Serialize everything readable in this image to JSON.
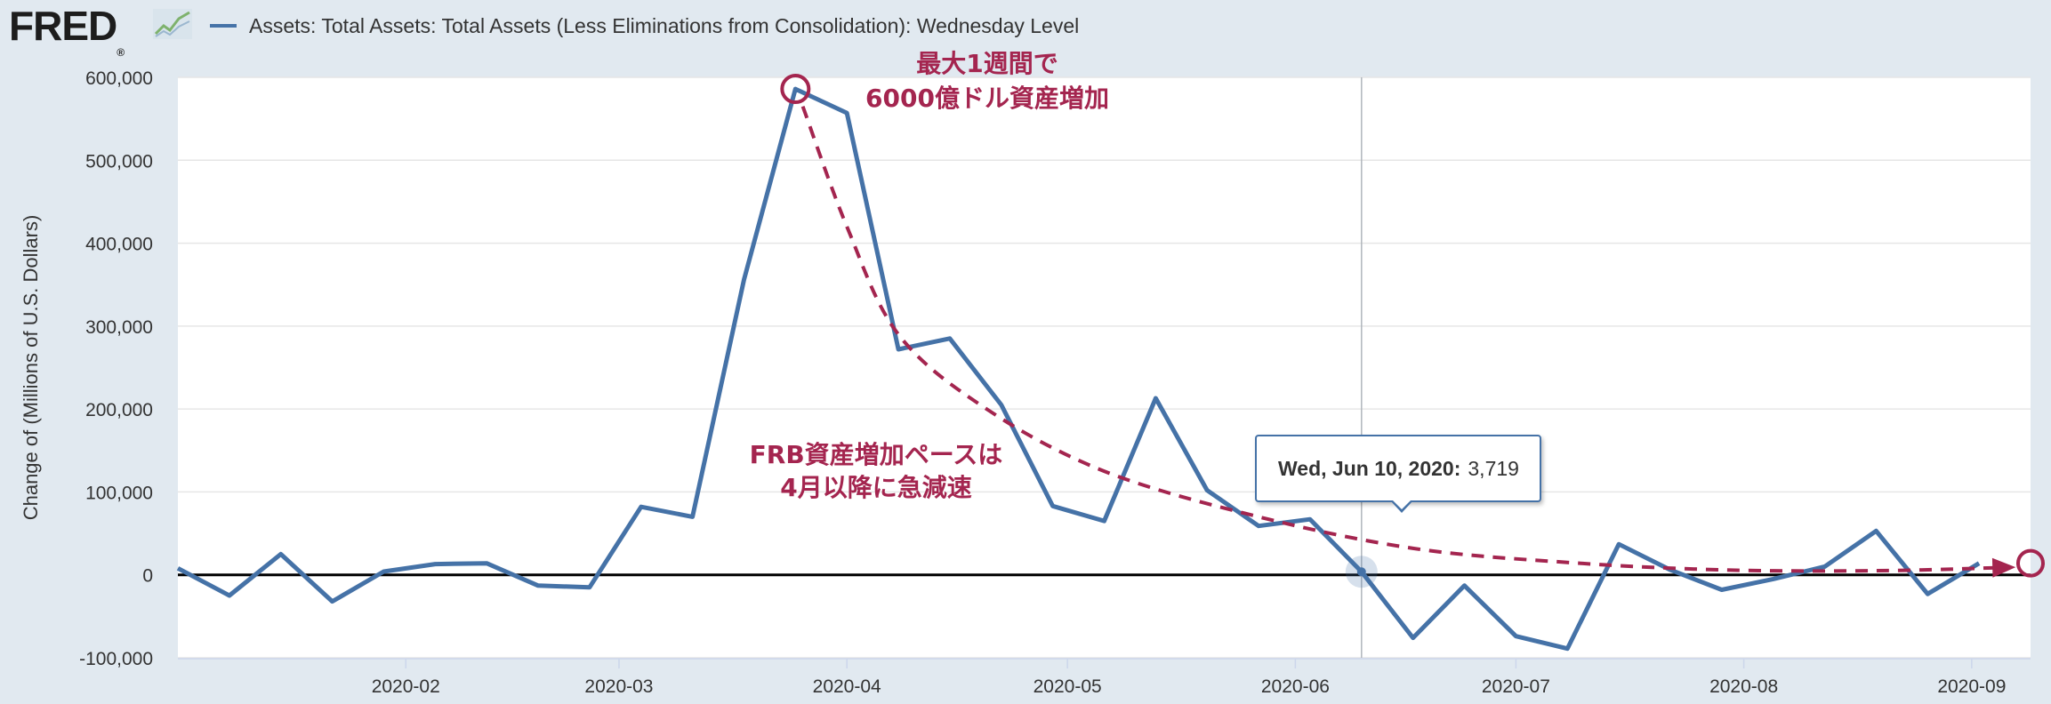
{
  "header": {
    "logo_text": "FRED",
    "logo_mark": "®",
    "logo_icon": "fred-graph-icon",
    "legend_label": "Assets: Total Assets: Total Assets (Less Eliminations from Consolidation): Wednesday Level"
  },
  "colors": {
    "series": "#4572a7",
    "annotation": "#a4254f",
    "zero_line": "#000000",
    "background": "#e1e9f0"
  },
  "chart_data": {
    "type": "line",
    "title": "",
    "xlabel": "",
    "ylabel": "Change of (Millions of U.S. Dollars)",
    "ylim": [
      -100000,
      600000
    ],
    "xlim": [
      "2020-01-01",
      "2020-09-09"
    ],
    "grid": "horizontal",
    "yticks": [
      {
        "value": -100000,
        "label": "-100,000"
      },
      {
        "value": 0,
        "label": "0"
      },
      {
        "value": 100000,
        "label": "100,000"
      },
      {
        "value": 200000,
        "label": "200,000"
      },
      {
        "value": 300000,
        "label": "300,000"
      },
      {
        "value": 400000,
        "label": "400,000"
      },
      {
        "value": 500000,
        "label": "500,000"
      },
      {
        "value": 600000,
        "label": "600,000"
      }
    ],
    "xticks": [
      {
        "date": "2020-02-01",
        "label": "2020-02"
      },
      {
        "date": "2020-03-01",
        "label": "2020-03"
      },
      {
        "date": "2020-04-01",
        "label": "2020-04"
      },
      {
        "date": "2020-05-01",
        "label": "2020-05"
      },
      {
        "date": "2020-06-01",
        "label": "2020-06"
      },
      {
        "date": "2020-07-01",
        "label": "2020-07"
      },
      {
        "date": "2020-08-01",
        "label": "2020-08"
      },
      {
        "date": "2020-09-01",
        "label": "2020-09"
      }
    ],
    "series": [
      {
        "name": "Assets: Total Assets: Total Assets (Less Eliminations from Consolidation): Wednesday Level",
        "points": [
          {
            "x": "2020-01-01",
            "y": 8000
          },
          {
            "x": "2020-01-08",
            "y": -25000
          },
          {
            "x": "2020-01-15",
            "y": 25000
          },
          {
            "x": "2020-01-22",
            "y": -32000
          },
          {
            "x": "2020-01-29",
            "y": 4000
          },
          {
            "x": "2020-02-05",
            "y": 13000
          },
          {
            "x": "2020-02-12",
            "y": 14000
          },
          {
            "x": "2020-02-19",
            "y": -13000
          },
          {
            "x": "2020-02-26",
            "y": -15000
          },
          {
            "x": "2020-03-04",
            "y": 82000
          },
          {
            "x": "2020-03-11",
            "y": 70000
          },
          {
            "x": "2020-03-18",
            "y": 356000
          },
          {
            "x": "2020-03-25",
            "y": 586000
          },
          {
            "x": "2020-04-01",
            "y": 557000
          },
          {
            "x": "2020-04-08",
            "y": 272000
          },
          {
            "x": "2020-04-15",
            "y": 285000
          },
          {
            "x": "2020-04-22",
            "y": 205000
          },
          {
            "x": "2020-04-29",
            "y": 83000
          },
          {
            "x": "2020-05-06",
            "y": 65000
          },
          {
            "x": "2020-05-13",
            "y": 213000
          },
          {
            "x": "2020-05-20",
            "y": 102000
          },
          {
            "x": "2020-05-27",
            "y": 59000
          },
          {
            "x": "2020-06-03",
            "y": 67000
          },
          {
            "x": "2020-06-10",
            "y": 3719
          },
          {
            "x": "2020-06-17",
            "y": -76000
          },
          {
            "x": "2020-06-24",
            "y": -13000
          },
          {
            "x": "2020-07-01",
            "y": -74000
          },
          {
            "x": "2020-07-08",
            "y": -89000
          },
          {
            "x": "2020-07-15",
            "y": 37000
          },
          {
            "x": "2020-07-22",
            "y": 6000
          },
          {
            "x": "2020-07-29",
            "y": -18000
          },
          {
            "x": "2020-08-05",
            "y": -5000
          },
          {
            "x": "2020-08-12",
            "y": 10000
          },
          {
            "x": "2020-08-19",
            "y": 53000
          },
          {
            "x": "2020-08-26",
            "y": -23000
          },
          {
            "x": "2020-09-02",
            "y": 14000
          }
        ]
      }
    ],
    "highlight": {
      "x": "2020-06-10",
      "y": 3719
    }
  },
  "tooltip": {
    "date": "Wed, Jun 10, 2020:",
    "value": "3,719"
  },
  "annotations": {
    "top_line1": "最大1週間で",
    "top_line2": "6000億ドル資産増加",
    "mid_line1": "FRB資産増加ペースは",
    "mid_line2": "4月以降に急減速",
    "curve": [
      {
        "x": "2020-03-26",
        "y": 565000
      },
      {
        "x": "2020-04-01",
        "y": 420000
      },
      {
        "x": "2020-04-08",
        "y": 290000
      },
      {
        "x": "2020-04-20",
        "y": 200000
      },
      {
        "x": "2020-05-06",
        "y": 125000
      },
      {
        "x": "2020-05-27",
        "y": 70000
      },
      {
        "x": "2020-06-17",
        "y": 32000
      },
      {
        "x": "2020-07-08",
        "y": 15000
      },
      {
        "x": "2020-07-29",
        "y": 6000
      },
      {
        "x": "2020-08-19",
        "y": 5000
      },
      {
        "x": "2020-09-06",
        "y": 9000
      }
    ],
    "start_marker": {
      "x": "2020-03-25",
      "y": 586000
    },
    "end_marker": {
      "x": "2020-09-09",
      "y": 14000
    }
  }
}
